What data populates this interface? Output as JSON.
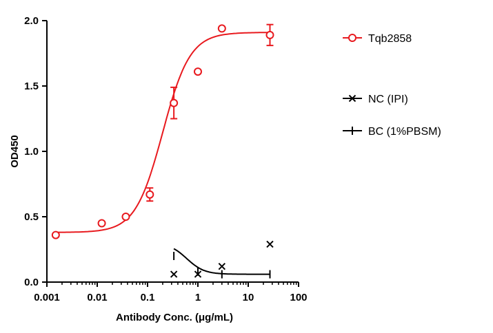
{
  "chart_data": {
    "type": "scatter",
    "title": "",
    "xlabel": "Antibody Conc. (μg/mL)",
    "ylabel": "OD450",
    "xscale": "log",
    "xlim": [
      0.001,
      100
    ],
    "ylim": [
      0,
      2.0
    ],
    "xticks": [
      0.001,
      0.01,
      0.1,
      1,
      10,
      100
    ],
    "xtick_labels": [
      "0.001",
      "0.01",
      "0.1",
      "1",
      "10",
      "100"
    ],
    "yticks": [
      0,
      0.5,
      1.0,
      1.5,
      2.0
    ],
    "ytick_labels": [
      "0.0",
      "0.5",
      "1.0",
      "1.5",
      "2.0"
    ],
    "grid": false,
    "legend_position": "right",
    "series": [
      {
        "name": "Tqb2858",
        "color": "#e8191e",
        "marker": "open-circle",
        "x": [
          0.0015,
          0.0123,
          0.037,
          0.111,
          0.333,
          1.0,
          3.0,
          27.0
        ],
        "y": [
          0.36,
          0.45,
          0.5,
          0.67,
          1.37,
          1.61,
          1.94,
          1.89
        ],
        "err": [
          0,
          0,
          0,
          0.05,
          0.12,
          0,
          0,
          0.08
        ],
        "fit": {
          "bottom": 0.38,
          "top": 1.91,
          "ec50": 0.2,
          "hill": 1.6
        }
      },
      {
        "name": "NC (IPI)",
        "color": "#000000",
        "marker": "x",
        "x": [
          0.333,
          1.0,
          3.0,
          27.0
        ],
        "y": [
          0.06,
          0.06,
          0.12,
          0.29
        ]
      },
      {
        "name": "BC (1%PBSM)",
        "color": "#000000",
        "marker": "plus",
        "x": [
          0.333,
          1.0,
          3.0,
          27.0
        ],
        "y": [
          0.2,
          0.08,
          0.06,
          0.06
        ],
        "fit": {
          "bottom": 0.06,
          "top": 0.3,
          "ec50": 0.6,
          "hill": -2.5
        }
      }
    ]
  }
}
